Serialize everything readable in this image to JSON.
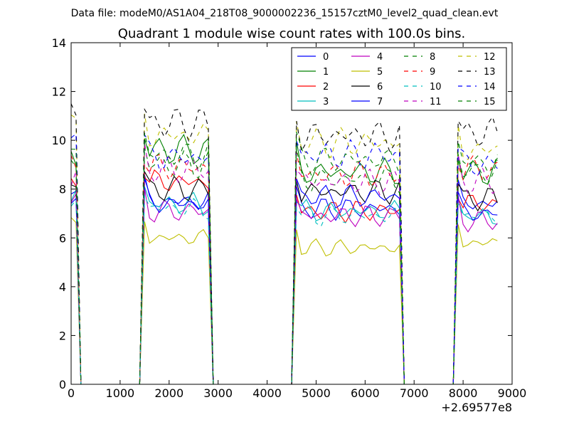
{
  "chart_data": {
    "type": "line",
    "suptitle": "Data file: modeM0/AS1A04_218T08_9000002236_15157cztM0_level2_quad_clean.evt",
    "title": "Quadrant 1 module wise count rates with 100.0s bins.",
    "xlabel": "",
    "ylabel": "",
    "x_offset_label": "+2.69577e8",
    "xlim": [
      0,
      9000
    ],
    "ylim": [
      0,
      14
    ],
    "xticks": [
      0,
      1000,
      2000,
      3000,
      4000,
      5000,
      6000,
      7000,
      8000,
      9000
    ],
    "yticks": [
      0,
      2,
      4,
      6,
      8,
      10,
      12,
      14
    ],
    "grid": false,
    "legend_position": "top-right",
    "legend_columns": 4,
    "active_intervals": [
      [
        0,
        100
      ],
      [
        1500,
        2800
      ],
      [
        4600,
        6700
      ],
      [
        7900,
        8700
      ]
    ],
    "series": [
      {
        "name": "0",
        "color": "#0000ff",
        "dash": "solid",
        "levels": [
          7.8,
          7.5,
          7.2,
          7.4
        ]
      },
      {
        "name": "1",
        "color": "#008000",
        "dash": "solid",
        "levels": [
          9.0,
          9.6,
          8.7,
          8.7
        ]
      },
      {
        "name": "2",
        "color": "#ff0000",
        "dash": "solid",
        "levels": [
          8.3,
          8.3,
          7.1,
          7.4
        ]
      },
      {
        "name": "3",
        "color": "#00bfbf",
        "dash": "solid",
        "levels": [
          7.7,
          7.4,
          7.1,
          6.9
        ]
      },
      {
        "name": "4",
        "color": "#bf00bf",
        "dash": "solid",
        "levels": [
          7.4,
          7.1,
          6.9,
          6.7
        ]
      },
      {
        "name": "5",
        "color": "#bfbf00",
        "dash": "solid",
        "levels": [
          6.8,
          6.0,
          5.6,
          5.8
        ]
      },
      {
        "name": "6",
        "color": "#000000",
        "dash": "solid",
        "levels": [
          8.6,
          8.0,
          7.9,
          7.6
        ]
      },
      {
        "name": "7",
        "color": "#0000ff",
        "dash": "solid",
        "levels": [
          7.6,
          7.4,
          7.7,
          7.0
        ]
      },
      {
        "name": "8",
        "color": "#008000",
        "dash": "dashed",
        "levels": [
          8.7,
          9.0,
          8.4,
          8.7
        ]
      },
      {
        "name": "9",
        "color": "#ff0000",
        "dash": "dashed",
        "levels": [
          9.0,
          8.9,
          8.6,
          8.8
        ]
      },
      {
        "name": "10",
        "color": "#00bfbf",
        "dash": "dashed",
        "levels": [
          7.5,
          7.2,
          6.9,
          6.9
        ]
      },
      {
        "name": "11",
        "color": "#bf00bf",
        "dash": "dashed",
        "levels": [
          8.3,
          8.8,
          8.3,
          8.3
        ]
      },
      {
        "name": "12",
        "color": "#bfbf00",
        "dash": "dashed",
        "levels": [
          10.9,
          10.2,
          9.9,
          9.6
        ]
      },
      {
        "name": "13",
        "color": "#000000",
        "dash": "dashed",
        "levels": [
          11.8,
          10.7,
          10.2,
          10.3
        ]
      },
      {
        "name": "14",
        "color": "#0000ff",
        "dash": "dashed",
        "levels": [
          10.5,
          9.3,
          9.4,
          9.0
        ]
      },
      {
        "name": "15",
        "color": "#008000",
        "dash": "dashed",
        "levels": [
          9.3,
          9.4,
          9.2,
          9.1
        ]
      }
    ]
  }
}
